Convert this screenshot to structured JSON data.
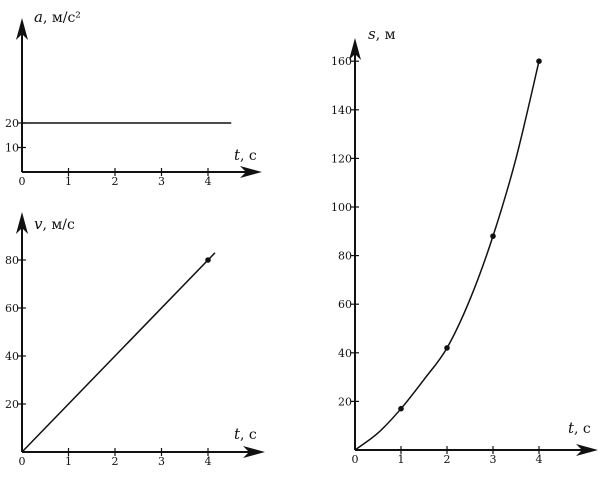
{
  "chart_data": [
    {
      "type": "line",
      "panel": "acceleration",
      "ylabel_var": "a",
      "ylabel_unit": ", м/с²",
      "xlabel_var": "t",
      "xlabel_unit": ", с",
      "xlim": [
        0,
        5
      ],
      "ylim": [
        0,
        30
      ],
      "xticks": [
        0,
        1,
        2,
        3,
        4
      ],
      "yticks": [
        10,
        20
      ],
      "grid": false,
      "series": [
        {
          "x": [
            0,
            4.5
          ],
          "y": [
            20,
            20
          ]
        }
      ],
      "markers": []
    },
    {
      "type": "line",
      "panel": "velocity",
      "ylabel_var": "v",
      "ylabel_unit": ", м/с",
      "xlabel_var": "t",
      "xlabel_unit": ", с",
      "xlim": [
        0,
        5
      ],
      "ylim": [
        0,
        95
      ],
      "xticks": [
        0,
        1,
        2,
        3,
        4
      ],
      "yticks": [
        20,
        40,
        60,
        80
      ],
      "grid": false,
      "series": [
        {
          "x": [
            0,
            4.15
          ],
          "y": [
            0,
            83
          ]
        }
      ],
      "markers": [
        {
          "x": 4,
          "y": 80
        }
      ]
    },
    {
      "type": "line",
      "panel": "displacement",
      "ylabel_var": "s",
      "ylabel_unit": ", м",
      "xlabel_var": "t",
      "xlabel_unit": ", с",
      "xlim": [
        0,
        5
      ],
      "ylim": [
        0,
        180
      ],
      "xticks": [
        0,
        1,
        2,
        3,
        4
      ],
      "yticks": [
        20,
        40,
        60,
        80,
        100,
        120,
        140,
        160
      ],
      "grid": false,
      "series": [
        {
          "x": [
            0,
            0.5,
            1,
            1.5,
            2,
            2.5,
            3,
            3.5,
            4
          ],
          "y": [
            0,
            7,
            17,
            29,
            42,
            62,
            88,
            120,
            160
          ]
        }
      ],
      "markers": [
        {
          "x": 1,
          "y": 17
        },
        {
          "x": 2,
          "y": 42
        },
        {
          "x": 3,
          "y": 88
        },
        {
          "x": 4,
          "y": 160
        }
      ]
    }
  ]
}
